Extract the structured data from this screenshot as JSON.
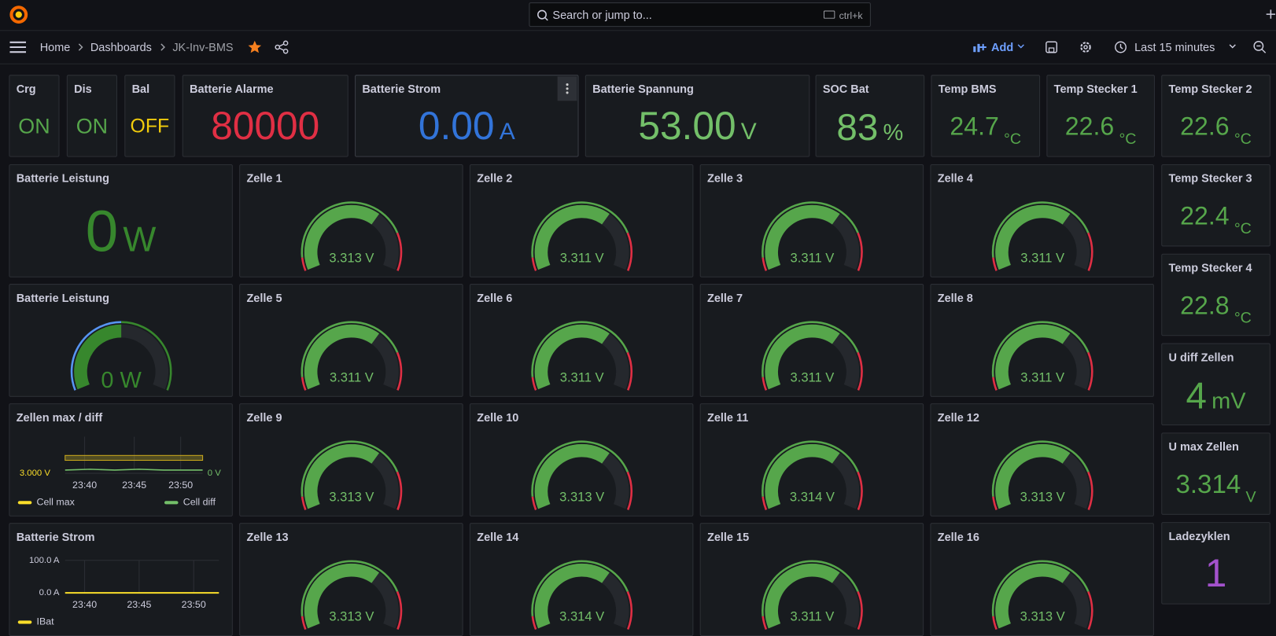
{
  "topbar": {
    "search_placeholder": "Search or jump to...",
    "shortcut": "ctrl+k"
  },
  "nav": {
    "breadcrumbs": [
      "Home",
      "Dashboards",
      "JK-Inv-BMS"
    ],
    "add_button": "Add",
    "time_range": "Last 15 minutes"
  },
  "stats": [
    {
      "title": "Crg",
      "value": "ON",
      "color": "#56a64b"
    },
    {
      "title": "Dis",
      "value": "ON",
      "color": "#56a64b"
    },
    {
      "title": "Bal",
      "value": "OFF",
      "color": "#f2cc0c"
    },
    {
      "title": "Batterie Alarme",
      "value": "80000",
      "color": "#e02f44"
    },
    {
      "title": "Batterie Strom",
      "value": "0.00",
      "unit": "A",
      "color": "#3274d9"
    },
    {
      "title": "Batterie Spannung",
      "value": "53.00",
      "unit": "V",
      "color": "#73bf69"
    },
    {
      "title": "SOC Bat",
      "value": "83",
      "unit": "%",
      "color": "#73bf69"
    },
    {
      "title": "Temp BMS",
      "value": "24.7",
      "unit": "°C",
      "color": "#56a64b"
    },
    {
      "title": "Temp Stecker 1",
      "value": "22.6",
      "unit": "°C",
      "color": "#56a64b"
    },
    {
      "title": "Temp Stecker 2",
      "value": "22.6",
      "unit": "°C",
      "color": "#56a64b"
    },
    {
      "title": "Batterie Leistung",
      "value": "0",
      "unit": "W",
      "color": "#37872d"
    },
    {
      "title": "Temp Stecker 3",
      "value": "22.4",
      "unit": "°C",
      "color": "#56a64b"
    },
    {
      "title": "Temp Stecker 4",
      "value": "22.8",
      "unit": "°C",
      "color": "#56a64b"
    },
    {
      "title": "U diff Zellen",
      "value": "4",
      "unit": "mV",
      "color": "#56a64b"
    },
    {
      "title": "U max Zellen",
      "value": "3.314",
      "unit": "V",
      "color": "#56a64b"
    },
    {
      "title": "Ladezyklen",
      "value": "1",
      "color": "#a352cc"
    }
  ],
  "gauges": [
    {
      "title": "Zelle 1",
      "value": "3.313 V"
    },
    {
      "title": "Zelle 2",
      "value": "3.311 V"
    },
    {
      "title": "Zelle 3",
      "value": "3.311 V"
    },
    {
      "title": "Zelle 4",
      "value": "3.311 V"
    },
    {
      "title": "Zelle 5",
      "value": "3.311 V"
    },
    {
      "title": "Zelle 6",
      "value": "3.311 V"
    },
    {
      "title": "Zelle 7",
      "value": "3.311 V"
    },
    {
      "title": "Zelle 8",
      "value": "3.311 V"
    },
    {
      "title": "Zelle 9",
      "value": "3.313 V"
    },
    {
      "title": "Zelle 10",
      "value": "3.313 V"
    },
    {
      "title": "Zelle 11",
      "value": "3.314 V"
    },
    {
      "title": "Zelle 12",
      "value": "3.313 V"
    },
    {
      "title": "Zelle 13",
      "value": "3.313 V"
    },
    {
      "title": "Zelle 14",
      "value": "3.314 V"
    },
    {
      "title": "Zelle 15",
      "value": "3.311 V"
    },
    {
      "title": "Zelle 16",
      "value": "3.313 V"
    },
    {
      "title": "Batterie Leistung",
      "value": "0 W"
    }
  ],
  "charts": [
    {
      "title": "Zellen max / diff",
      "y_label": "3.000 V",
      "y2_label": "0 V",
      "x_labels": [
        "23:40",
        "23:45",
        "23:50"
      ],
      "legend": [
        {
          "name": "Cell max",
          "color": "#fade2a"
        },
        {
          "name": "Cell diff",
          "color": "#73bf69"
        }
      ]
    },
    {
      "title": "Batterie Strom",
      "y_labels": [
        "100.0 A",
        "0.0 A"
      ],
      "x_labels": [
        "23:40",
        "23:45",
        "23:50"
      ],
      "legend": [
        {
          "name": "IBat",
          "color": "#fade2a"
        }
      ]
    }
  ]
}
